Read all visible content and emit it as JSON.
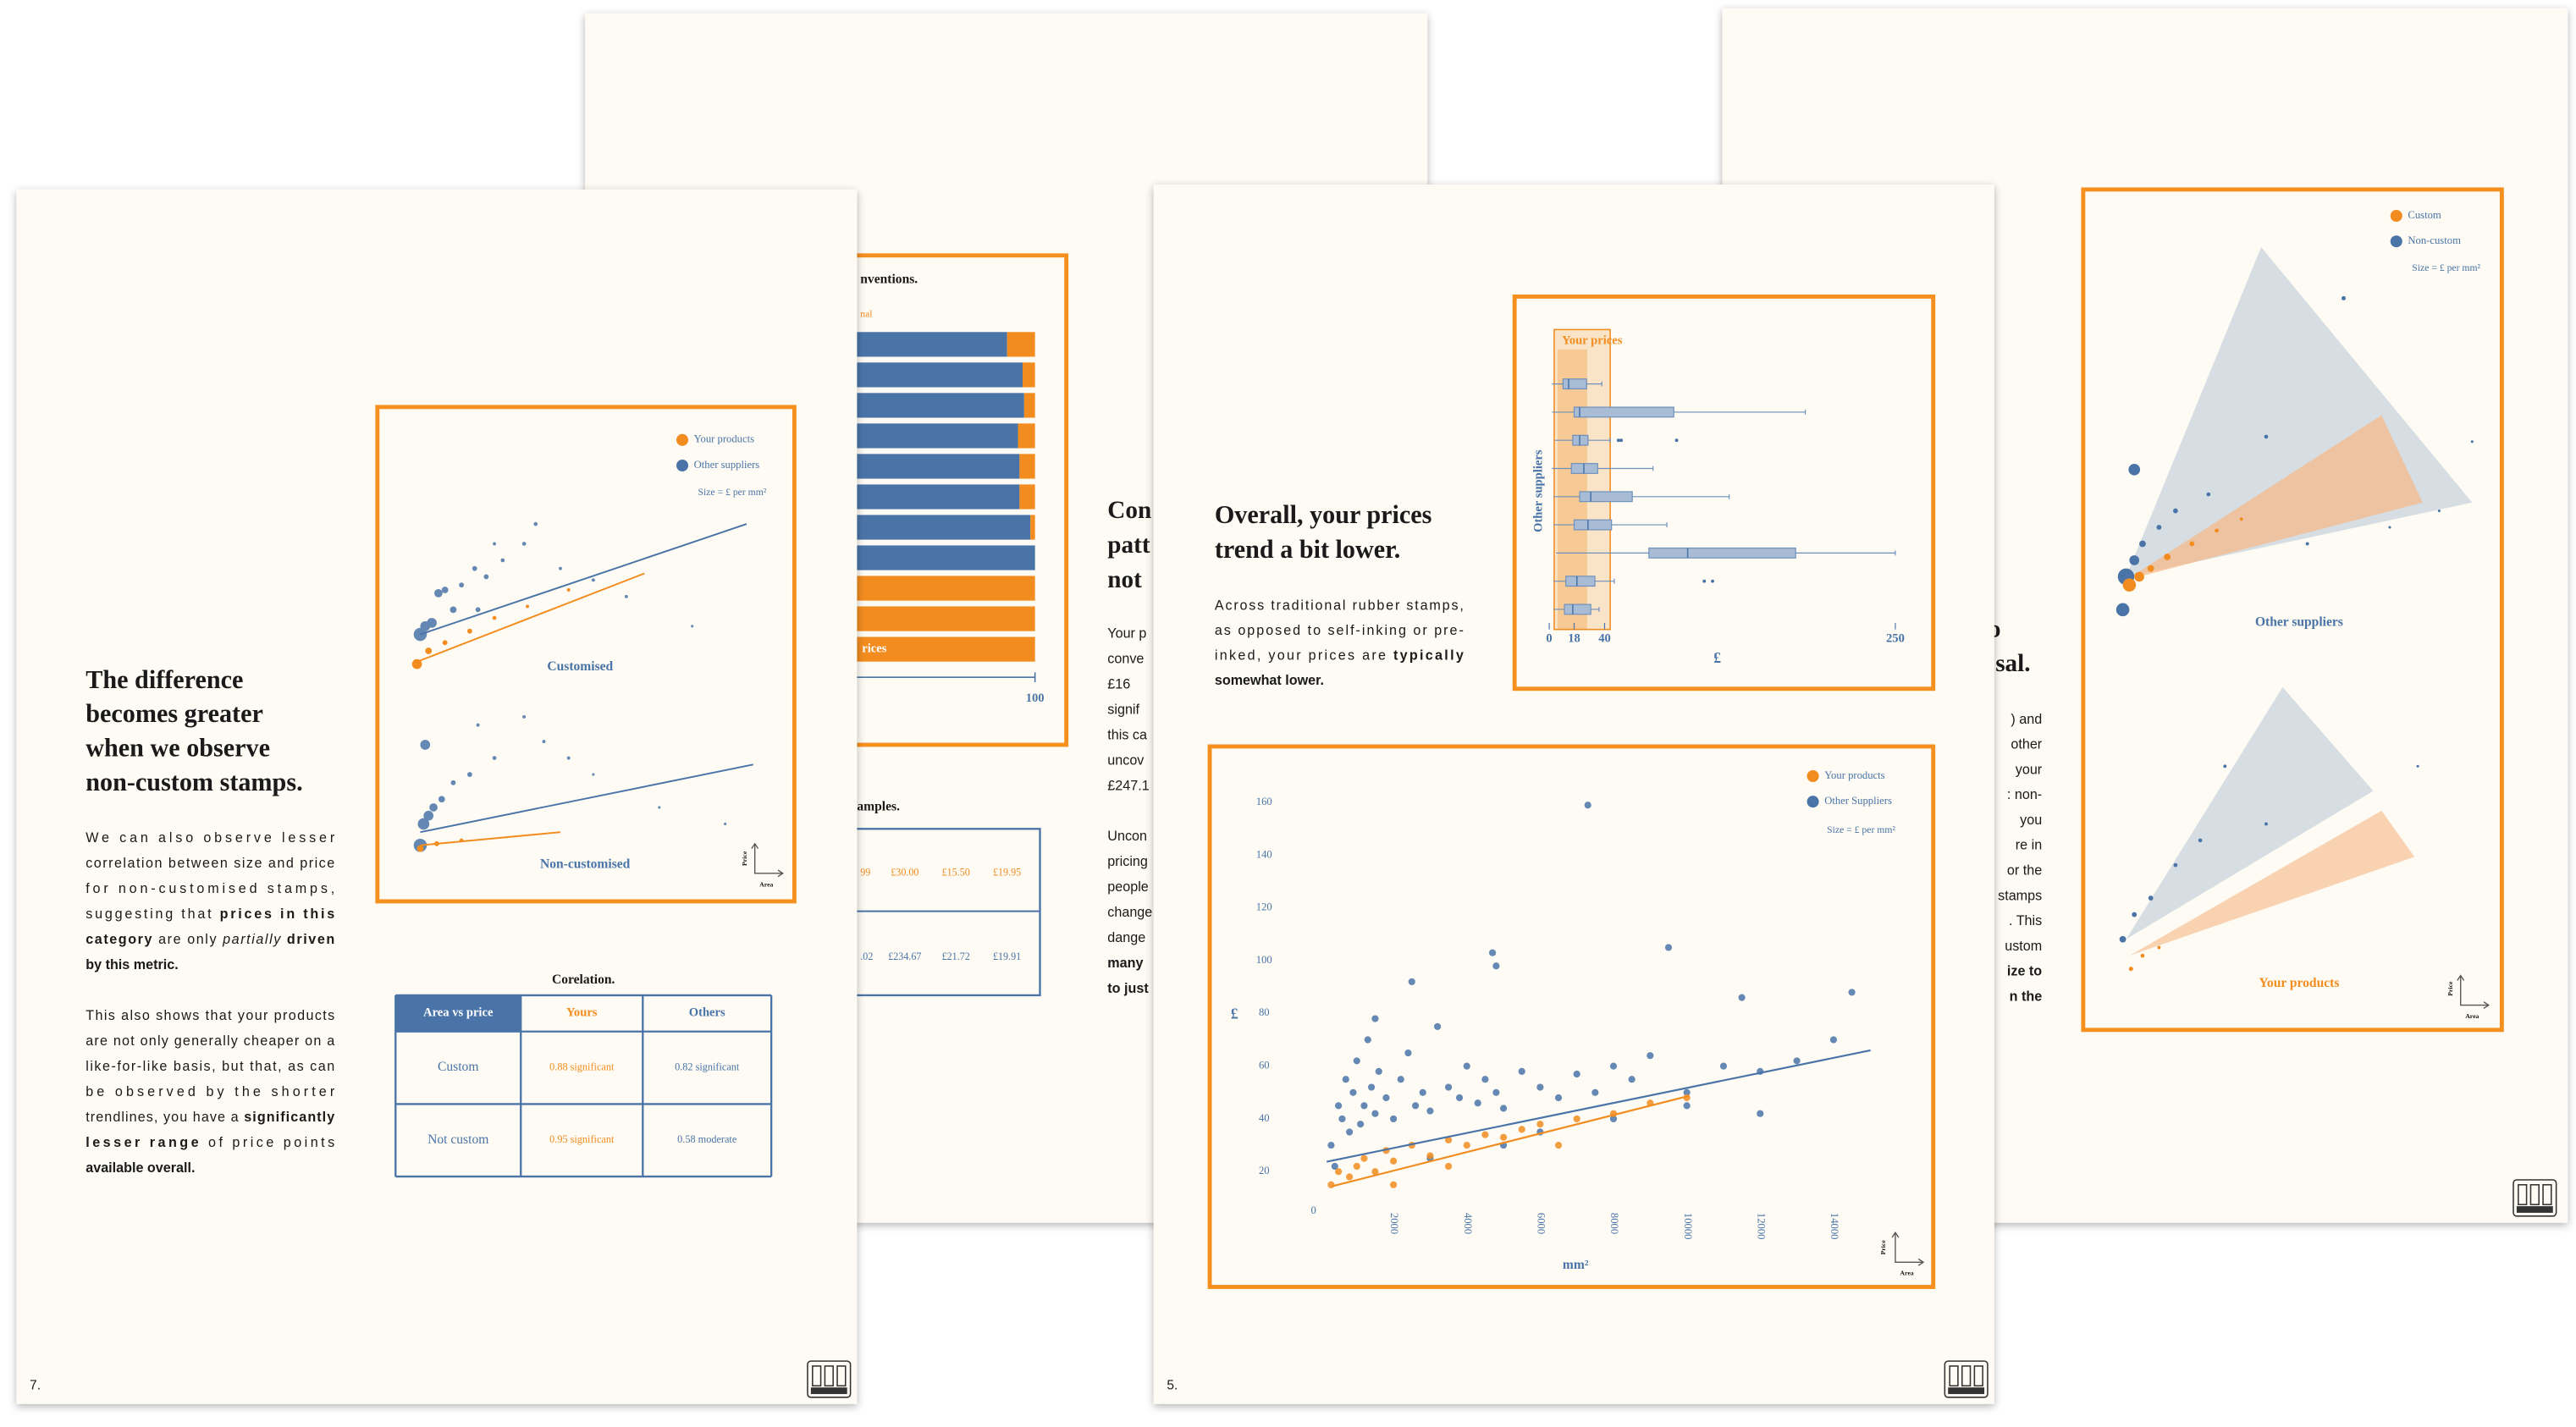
{
  "page_a": {
    "bar_chart": {
      "type": "bar",
      "title_fragment": "nventions.",
      "legend_fragment": "nal",
      "label_fragment": "rices",
      "xlim": [
        0,
        100
      ],
      "xticks": [
        100
      ],
      "series": [
        {
          "color": "#4a74a8",
          "values": [
            91,
            96,
            96.5,
            94.5,
            95,
            95,
            98.5,
            100,
            0,
            0,
            0
          ]
        },
        {
          "color": "#f28c1e",
          "values": [
            9,
            4,
            3.5,
            5.5,
            5,
            5,
            1.5,
            0,
            100,
            100,
            100
          ]
        }
      ]
    },
    "samples": {
      "title_fragment": "amples.",
      "rows": [
        [
          "99",
          "£30.00",
          "£15.50",
          "£19.95"
        ],
        [
          ".02",
          "£234.67",
          "£21.72",
          "£19.91"
        ]
      ]
    },
    "heading_fragments": [
      "Con",
      "patt",
      "not"
    ],
    "text_fragments": [
      [
        [
          {
            "text": "Your p"
          }
        ],
        [
          {
            "text": "conve"
          }
        ],
        [
          {
            "text": "£16"
          }
        ],
        [
          {
            "text": "signif"
          }
        ],
        [
          {
            "text": "this ca"
          }
        ],
        [
          {
            "text": "uncov"
          }
        ],
        [
          {
            "text": "£247.1"
          }
        ]
      ],
      [
        [
          {
            "text": "Uncon"
          }
        ],
        [
          {
            "text": "pricing"
          }
        ],
        [
          {
            "text": "people"
          }
        ],
        [
          {
            "text": "change"
          }
        ],
        [
          {
            "text": "dange"
          }
        ],
        [
          {
            "text": "many",
            "bold": true
          }
        ],
        [
          {
            "text": "to just",
            "bold": true
          }
        ]
      ]
    ]
  },
  "page_b": {
    "legend": [
      "Custom",
      "Non-custom"
    ],
    "size_note": "Size = £ per mm²",
    "panel_labels": [
      "Other suppliers",
      "Your products"
    ],
    "axis_icon": [
      "Price",
      "Area"
    ],
    "heading_fragments": [
      "o",
      "sal."
    ],
    "text_fragments": [
      [
        {
          "text": ") and"
        }
      ],
      [
        {
          "text": "other"
        }
      ],
      [
        {
          "text": "your"
        }
      ],
      [
        {
          "text": ": non-"
        }
      ],
      [
        {
          "text": "you"
        }
      ],
      [
        {
          "text": "re in"
        }
      ],
      [
        {
          "text": "or the"
        }
      ],
      [
        {
          "text": "stamps"
        }
      ],
      [
        {
          "text": ". This"
        }
      ],
      [
        {
          "text": "ustom"
        }
      ],
      [
        {
          "text": "ize to",
          "bold": true
        }
      ],
      [
        {
          "text": "n the",
          "bold": true
        }
      ]
    ]
  },
  "page_7": {
    "number": "7.",
    "heading": [
      "The difference",
      "becomes greater",
      "when we observe",
      "non-custom stamps."
    ],
    "paragraphs": [
      [
        [
          {
            "text": "We can also observe lesser"
          }
        ],
        [
          {
            "text": "correlation between size and price"
          }
        ],
        [
          {
            "text": "for non-customised stamps,"
          }
        ],
        [
          {
            "text": "suggesting that "
          },
          {
            "text": "prices in this",
            "bold": true
          }
        ],
        [
          {
            "text": "category",
            "bold": true
          },
          {
            "text": " are only "
          },
          {
            "text": "partially",
            "italic": true
          },
          {
            "text": " driven",
            "bold": true
          }
        ],
        [
          {
            "text": "by this metric.",
            "bold": true
          }
        ]
      ],
      [
        [
          {
            "text": "This also shows that your products"
          }
        ],
        [
          {
            "text": "are not only generally cheaper on a"
          }
        ],
        [
          {
            "text": "like-for-like basis, but that, as can"
          }
        ],
        [
          {
            "text": "be observed by the shorter"
          }
        ],
        [
          {
            "text": "trendlines, you have a "
          },
          {
            "text": "significantly",
            "bold": true
          }
        ],
        [
          {
            "text": "lesser range",
            "bold": true
          },
          {
            "text": " of price points"
          }
        ],
        [
          {
            "text": "available overall.",
            "bold": true
          }
        ]
      ]
    ],
    "chart": {
      "legend": [
        "Your products",
        "Other suppliers"
      ],
      "size_note": "Size = £ per mm²",
      "panels": [
        "Customised",
        "Non-customised"
      ],
      "axis_icon": [
        "Price",
        "Area"
      ]
    },
    "table": {
      "title": "Corelation.",
      "header": [
        "Area vs price",
        "Yours",
        "Others"
      ],
      "rows": [
        [
          "Custom",
          "0.88 significant",
          "0.82 significant"
        ],
        [
          "Not custom",
          "0.95 significant",
          "0.58 moderate"
        ]
      ]
    }
  },
  "page_5": {
    "number": "5.",
    "heading": [
      "Overall, your prices",
      "trend a bit lower."
    ],
    "paragraph": [
      [
        {
          "text": "Across traditional rubber stamps,"
        }
      ],
      [
        {
          "text": "as opposed to self-inking or pre-"
        }
      ],
      [
        {
          "text": "inked, your prices are "
        },
        {
          "text": "typically",
          "bold": true
        }
      ],
      [
        {
          "text": "somewhat lower.",
          "bold": true
        }
      ]
    ],
    "box_chart": {
      "type": "box",
      "title": "Your prices",
      "ylabel": "Other suppliers",
      "xlabel": "£",
      "xlim": [
        0,
        250
      ],
      "xticks": [
        0,
        18,
        40,
        250
      ],
      "boxes": [
        {
          "min": 2,
          "q1": 10,
          "median": 14,
          "q3": 27,
          "max": 38,
          "outliers": []
        },
        {
          "min": 2,
          "q1": 18,
          "median": 22,
          "q3": 90,
          "max": 185,
          "outliers": []
        },
        {
          "min": 4,
          "q1": 17,
          "median": 22,
          "q3": 28,
          "max": 44,
          "outliers": [
            50,
            52,
            92
          ]
        },
        {
          "min": 2,
          "q1": 16,
          "median": 25,
          "q3": 35,
          "max": 75,
          "outliers": []
        },
        {
          "min": 3,
          "q1": 22,
          "median": 30,
          "q3": 60,
          "max": 130,
          "outliers": []
        },
        {
          "min": 3,
          "q1": 18,
          "median": 28,
          "q3": 45,
          "max": 85,
          "outliers": []
        },
        {
          "min": 5,
          "q1": 72,
          "median": 100,
          "q3": 178,
          "max": 250,
          "outliers": []
        },
        {
          "min": 3,
          "q1": 12,
          "median": 20,
          "q3": 33,
          "max": 47,
          "outliers": [
            112,
            118
          ]
        },
        {
          "min": 3,
          "q1": 11,
          "median": 17,
          "q3": 30,
          "max": 36,
          "outliers": []
        }
      ]
    },
    "scatter": {
      "type": "scatter",
      "xlabel": "mm²",
      "ylabel": "£",
      "origin_label": "0",
      "size_note": "Size = £ per mm²",
      "axis_icon": [
        "Price",
        "Area"
      ],
      "xlim": [
        0,
        16000
      ],
      "ylim": [
        0,
        170
      ],
      "xticks": [
        2000,
        4000,
        6000,
        8000,
        10000,
        12000,
        14000
      ],
      "yticks": [
        20,
        40,
        60,
        80,
        100,
        120,
        140,
        160
      ],
      "series": [
        {
          "name": "Your products",
          "color": "#f28c1e",
          "x": [
            300,
            500,
            800,
            1000,
            1200,
            1500,
            1800,
            2000,
            2500,
            3000,
            3500,
            4000,
            4500,
            5000,
            5500,
            6000,
            7000,
            8000,
            9000,
            10000,
            2000,
            3500,
            6500
          ],
          "y": [
            15,
            20,
            18,
            22,
            25,
            20,
            28,
            24,
            30,
            26,
            32,
            30,
            34,
            33,
            36,
            38,
            40,
            42,
            46,
            48,
            15,
            22,
            30
          ],
          "trendline": {
            "x": [
              315,
              10067
            ],
            "y": [
              14.4,
              48.75
            ]
          }
        },
        {
          "name": "Other Suppliers",
          "color": "#4a74a8",
          "x": [
            300,
            400,
            500,
            600,
            700,
            800,
            900,
            1000,
            1100,
            1200,
            1300,
            1400,
            1500,
            1600,
            1800,
            2000,
            2200,
            2400,
            2600,
            2800,
            3000,
            3200,
            3500,
            3800,
            4000,
            4300,
            4500,
            4800,
            5000,
            5500,
            6000,
            6500,
            7000,
            7500,
            8000,
            8500,
            9000,
            10000,
            11000,
            12000,
            13000,
            14000,
            1500,
            2500,
            4700,
            4800,
            7300,
            9500,
            11500,
            14500,
            5000,
            3000,
            6000,
            8000,
            10000,
            12000
          ],
          "y": [
            30,
            22,
            45,
            40,
            55,
            35,
            50,
            62,
            38,
            45,
            70,
            52,
            42,
            58,
            48,
            40,
            55,
            65,
            45,
            50,
            43,
            75,
            52,
            48,
            60,
            46,
            55,
            50,
            44,
            58,
            52,
            48,
            57,
            50,
            60,
            55,
            64,
            50,
            60,
            58,
            62,
            70,
            78,
            92,
            103,
            98,
            159,
            105,
            86,
            88,
            30,
            25,
            35,
            40,
            45,
            42
          ],
          "trendline": {
            "x": [
              180,
              15010
            ],
            "y": [
              23.75,
              66
            ]
          }
        }
      ]
    }
  }
}
